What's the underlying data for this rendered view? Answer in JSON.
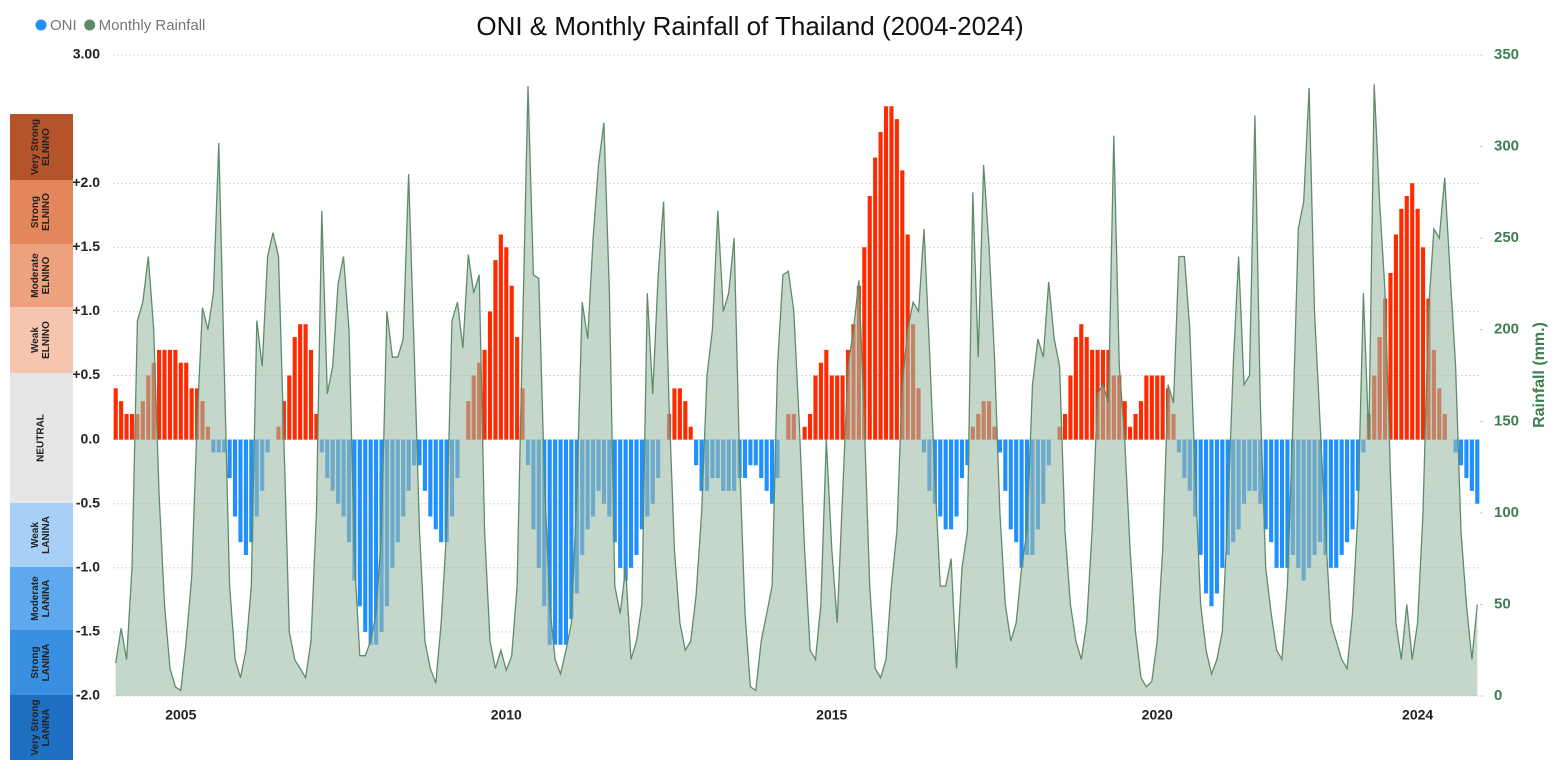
{
  "chart_data": {
    "type": "bar",
    "title": "ONI & Monthly Rainfall of Thailand (2004-2024)",
    "y2_label": "Rainfall (mm.)",
    "grid": true,
    "legend": "top-left",
    "ylim": [
      -2,
      3
    ],
    "yticks": [
      {
        "value": -2,
        "label": "-2.0"
      },
      {
        "value": -1.5,
        "label": "-1.5"
      },
      {
        "value": -1,
        "label": "-1.0"
      },
      {
        "value": -0.5,
        "label": "-0.5"
      },
      {
        "value": 0,
        "label": "0.0"
      },
      {
        "value": 0.5,
        "label": "+0.5"
      },
      {
        "value": 1,
        "label": "+1.0"
      },
      {
        "value": 1.5,
        "label": "+1.5"
      },
      {
        "value": 2,
        "label": "+2.0"
      },
      {
        "value": 3,
        "label": "3.00"
      }
    ],
    "y2lim": [
      0,
      350
    ],
    "y2ticks": [
      0,
      50,
      100,
      150,
      200,
      250,
      300,
      350
    ],
    "oni_bands": [
      {
        "lines": [
          "Very Strong",
          "ELNINO"
        ],
        "color": "#b5532b"
      },
      {
        "lines": [
          "Strong",
          "ELNINO"
        ],
        "color": "#e4865b"
      },
      {
        "lines": [
          "Moderate",
          "ELNINO"
        ],
        "color": "#eda17f"
      },
      {
        "lines": [
          "Weak",
          "ELNINO"
        ],
        "color": "#f6c5ae"
      },
      {
        "lines": [
          "NEUTRAL"
        ],
        "color": "#e6e6e6"
      },
      {
        "lines": [
          "Weak",
          "LANINA"
        ],
        "color": "#a8d0f6"
      },
      {
        "lines": [
          "Moderate",
          "LANINA"
        ],
        "color": "#5ea8ee"
      },
      {
        "lines": [
          "Strong",
          "LANINA"
        ],
        "color": "#3990e2"
      },
      {
        "lines": [
          "Very Strong",
          "LANINA"
        ],
        "color": "#1f6fc2"
      }
    ],
    "categories": [
      null,
      null,
      null,
      null,
      null,
      null,
      null,
      null,
      null,
      null,
      null,
      null,
      "2005",
      null,
      null,
      null,
      null,
      null,
      null,
      null,
      null,
      null,
      null,
      null,
      null,
      null,
      null,
      null,
      null,
      null,
      null,
      null,
      null,
      null,
      null,
      null,
      null,
      null,
      null,
      null,
      null,
      null,
      null,
      null,
      null,
      null,
      null,
      null,
      null,
      null,
      null,
      null,
      null,
      null,
      null,
      null,
      null,
      null,
      null,
      null,
      null,
      null,
      null,
      null,
      null,
      null,
      null,
      null,
      null,
      null,
      null,
      null,
      "2010",
      null,
      null,
      null,
      null,
      null,
      null,
      null,
      null,
      null,
      null,
      null,
      null,
      null,
      null,
      null,
      null,
      null,
      null,
      null,
      null,
      null,
      null,
      null,
      null,
      null,
      null,
      null,
      null,
      null,
      null,
      null,
      null,
      null,
      null,
      null,
      null,
      null,
      null,
      null,
      null,
      null,
      null,
      null,
      null,
      null,
      null,
      null,
      null,
      null,
      null,
      null,
      null,
      null,
      null,
      null,
      null,
      null,
      null,
      null,
      "2015",
      null,
      null,
      null,
      null,
      null,
      null,
      null,
      null,
      null,
      null,
      null,
      null,
      null,
      null,
      null,
      null,
      null,
      null,
      null,
      null,
      null,
      null,
      null,
      null,
      null,
      null,
      null,
      null,
      null,
      null,
      null,
      null,
      null,
      null,
      null,
      null,
      null,
      null,
      null,
      null,
      null,
      null,
      null,
      null,
      null,
      null,
      null,
      null,
      null,
      null,
      null,
      null,
      null,
      null,
      null,
      null,
      null,
      null,
      null,
      "2020",
      null,
      null,
      null,
      null,
      null,
      null,
      null,
      null,
      null,
      null,
      null,
      null,
      null,
      null,
      null,
      null,
      null,
      null,
      null,
      null,
      null,
      null,
      null,
      null,
      null,
      null,
      null,
      null,
      null,
      null,
      null,
      null,
      null,
      null,
      null,
      null,
      null,
      null,
      null,
      null,
      null,
      null,
      null,
      null,
      null,
      null,
      null,
      "2024",
      null,
      null,
      null,
      null,
      null,
      null,
      null,
      null,
      null,
      null,
      null
    ],
    "series": [
      {
        "name": "ONI",
        "type": "bar",
        "color": "#1e90ff",
        "positive_color": "#ff2a00",
        "values": [
          0.4,
          0.3,
          0.2,
          0.2,
          0.2,
          0.3,
          0.5,
          0.6,
          0.7,
          0.7,
          0.7,
          0.7,
          0.6,
          0.6,
          0.4,
          0.4,
          0.3,
          0.1,
          -0.1,
          -0.1,
          -0.1,
          -0.3,
          -0.6,
          -0.8,
          -0.9,
          -0.8,
          -0.6,
          -0.4,
          -0.1,
          0.0,
          0.1,
          0.3,
          0.5,
          0.8,
          0.9,
          0.9,
          0.7,
          0.2,
          -0.1,
          -0.3,
          -0.4,
          -0.5,
          -0.6,
          -0.8,
          -1.1,
          -1.3,
          -1.5,
          -1.6,
          -1.6,
          -1.5,
          -1.3,
          -1.0,
          -0.8,
          -0.6,
          -0.4,
          -0.2,
          -0.2,
          -0.4,
          -0.6,
          -0.7,
          -0.8,
          -0.8,
          -0.6,
          -0.3,
          0.0,
          0.3,
          0.5,
          0.6,
          0.7,
          1.0,
          1.4,
          1.6,
          1.5,
          1.2,
          0.8,
          0.4,
          -0.2,
          -0.7,
          -1.0,
          -1.3,
          -1.6,
          -1.6,
          -1.6,
          -1.6,
          -1.4,
          -1.2,
          -0.9,
          -0.7,
          -0.6,
          -0.4,
          -0.5,
          -0.6,
          -0.8,
          -1.0,
          -1.1,
          -1.0,
          -0.9,
          -0.7,
          -0.6,
          -0.5,
          -0.3,
          0.0,
          0.2,
          0.4,
          0.4,
          0.3,
          0.1,
          -0.2,
          -0.4,
          -0.4,
          -0.3,
          -0.3,
          -0.4,
          -0.4,
          -0.4,
          -0.3,
          -0.3,
          -0.2,
          -0.2,
          -0.3,
          -0.4,
          -0.5,
          -0.3,
          0.0,
          0.2,
          0.2,
          0.0,
          0.1,
          0.2,
          0.5,
          0.6,
          0.7,
          0.5,
          0.5,
          0.5,
          0.7,
          0.9,
          1.2,
          1.5,
          1.9,
          2.2,
          2.4,
          2.6,
          2.6,
          2.5,
          2.1,
          1.6,
          0.9,
          0.4,
          -0.1,
          -0.4,
          -0.5,
          -0.6,
          -0.7,
          -0.7,
          -0.6,
          -0.3,
          -0.2,
          0.1,
          0.2,
          0.3,
          0.3,
          0.1,
          -0.1,
          -0.4,
          -0.7,
          -0.8,
          -1.0,
          -0.9,
          -0.9,
          -0.7,
          -0.5,
          -0.2,
          0.0,
          0.1,
          0.2,
          0.5,
          0.8,
          0.9,
          0.8,
          0.7,
          0.7,
          0.7,
          0.7,
          0.5,
          0.5,
          0.3,
          0.1,
          0.2,
          0.3,
          0.5,
          0.5,
          0.5,
          0.5,
          0.4,
          0.2,
          -0.1,
          -0.3,
          -0.4,
          -0.6,
          -0.9,
          -1.2,
          -1.3,
          -1.2,
          -1.0,
          -0.9,
          -0.8,
          -0.7,
          -0.5,
          -0.4,
          -0.4,
          -0.5,
          -0.7,
          -0.8,
          -1.0,
          -1.0,
          -1.0,
          -0.9,
          -1.0,
          -1.1,
          -1.0,
          -0.9,
          -0.8,
          -0.9,
          -1.0,
          -1.0,
          -0.9,
          -0.8,
          -0.7,
          -0.4,
          -0.1,
          0.2,
          0.5,
          0.8,
          1.1,
          1.3,
          1.6,
          1.8,
          1.9,
          2.0,
          1.8,
          1.5,
          1.1,
          0.7,
          0.4,
          0.2,
          0.0,
          -0.1,
          -0.2,
          -0.3,
          -0.4,
          -0.5
        ]
      },
      {
        "name": "Monthly Rainfall",
        "type": "area",
        "axis": "y2",
        "color": "#5e8c6a",
        "values": [
          18,
          37,
          20,
          70,
          205,
          215,
          240,
          200,
          110,
          50,
          15,
          5,
          3,
          30,
          65,
          150,
          212,
          200,
          220,
          302,
          180,
          60,
          20,
          10,
          25,
          60,
          205,
          180,
          240,
          253,
          240,
          140,
          35,
          20,
          15,
          10,
          30,
          100,
          265,
          165,
          180,
          225,
          240,
          200,
          75,
          22,
          22,
          30,
          45,
          90,
          210,
          185,
          185,
          195,
          285,
          190,
          90,
          30,
          15,
          7,
          40,
          90,
          205,
          215,
          190,
          241,
          220,
          230,
          90,
          30,
          15,
          25,
          14,
          22,
          60,
          200,
          333,
          230,
          228,
          120,
          50,
          20,
          12,
          25,
          40,
          110,
          215,
          195,
          250,
          290,
          313,
          220,
          60,
          45,
          70,
          20,
          30,
          50,
          220,
          165,
          230,
          270,
          160,
          80,
          40,
          25,
          30,
          55,
          100,
          175,
          200,
          265,
          210,
          220,
          250,
          130,
          45,
          5,
          3,
          30,
          45,
          60,
          180,
          230,
          232,
          210,
          150,
          80,
          25,
          20,
          50,
          140,
          80,
          40,
          110,
          180,
          200,
          227,
          150,
          60,
          15,
          10,
          20,
          60,
          90,
          170,
          200,
          215,
          210,
          255,
          190,
          120,
          60,
          60,
          75,
          15,
          70,
          90,
          275,
          185,
          290,
          245,
          185,
          100,
          50,
          30,
          40,
          70,
          90,
          170,
          195,
          185,
          226,
          195,
          180,
          90,
          50,
          30,
          20,
          40,
          90,
          165,
          170,
          160,
          306,
          180,
          140,
          80,
          35,
          10,
          5,
          8,
          30,
          80,
          170,
          160,
          240,
          240,
          200,
          120,
          50,
          25,
          12,
          20,
          35,
          100,
          180,
          240,
          170,
          175,
          317,
          160,
          70,
          45,
          25,
          20,
          60,
          150,
          255,
          270,
          332,
          210,
          150,
          90,
          40,
          30,
          20,
          15,
          45,
          100,
          220,
          140,
          334,
          270,
          220,
          120,
          40,
          20,
          50,
          20,
          40,
          100,
          210,
          255,
          250,
          283,
          230,
          180,
          90,
          50,
          20,
          50
        ]
      }
    ]
  }
}
